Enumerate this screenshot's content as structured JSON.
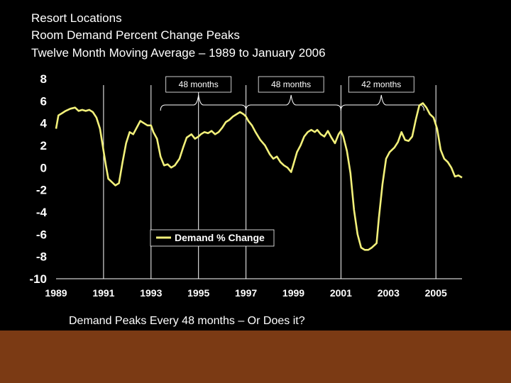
{
  "slide": {
    "title_lines": [
      "Resort Locations",
      "Room Demand Percent Change Peaks",
      "Twelve Month Moving Average – 1989 to January 2006"
    ],
    "caption": "Demand Peaks Every 48 months – Or Does it?",
    "colors": {
      "background": "#000000",
      "footer": "#7b3a14",
      "series": "#f2f07a",
      "text": "#ffffff"
    }
  },
  "chart_data": {
    "type": "line",
    "title": "",
    "xlabel": "",
    "ylabel": "",
    "xlim": [
      1989,
      2006.1
    ],
    "ylim": [
      -10,
      8
    ],
    "grid": false,
    "y_ticks": [
      "8",
      "6",
      "4",
      "2",
      "0",
      "-2",
      "-4",
      "-6",
      "-8",
      "-10"
    ],
    "y_tick_values": [
      8,
      6,
      4,
      2,
      0,
      -2,
      -4,
      -6,
      -8,
      -10
    ],
    "x_ticks": [
      "1989",
      "1991",
      "1993",
      "1995",
      "1997",
      "1999",
      "2001",
      "2003",
      "2005"
    ],
    "x_tick_values": [
      1989,
      1991,
      1993,
      1995,
      1997,
      1999,
      2001,
      2003,
      2005
    ],
    "vertical_lines": [
      1991,
      1993,
      1995,
      1997,
      2001,
      2005
    ],
    "legend": {
      "label": "Demand % Change",
      "placement": "lower-center"
    },
    "annotations": [
      {
        "label": "48 months",
        "from": 1993.4,
        "to": 1997.0,
        "peak": 1995.0
      },
      {
        "label": "48 months",
        "from": 1997.0,
        "to": 2001.0,
        "peak": 1998.9
      },
      {
        "label": "42 months",
        "from": 2001.0,
        "to": 2004.5,
        "peak": 2002.7
      }
    ],
    "series": [
      {
        "name": "Demand % Change",
        "x": [
          1989.0,
          1989.1,
          1989.25,
          1989.4,
          1989.6,
          1989.8,
          1989.95,
          1990.1,
          1990.25,
          1990.4,
          1990.55,
          1990.7,
          1990.85,
          1991.0,
          1991.1,
          1991.2,
          1991.35,
          1991.5,
          1991.65,
          1991.8,
          1991.95,
          1992.1,
          1992.25,
          1992.4,
          1992.55,
          1992.7,
          1992.85,
          1993.0,
          1993.1,
          1993.25,
          1993.4,
          1993.55,
          1993.7,
          1993.85,
          1994.0,
          1994.2,
          1994.35,
          1994.5,
          1994.7,
          1994.85,
          1995.0,
          1995.1,
          1995.25,
          1995.4,
          1995.55,
          1995.7,
          1995.85,
          1996.0,
          1996.15,
          1996.3,
          1996.45,
          1996.6,
          1996.75,
          1996.9,
          1997.0,
          1997.1,
          1997.25,
          1997.4,
          1997.6,
          1997.8,
          1998.0,
          1998.15,
          1998.3,
          1998.45,
          1998.6,
          1998.75,
          1998.9,
          1999.0,
          1999.15,
          1999.3,
          1999.45,
          1999.6,
          1999.75,
          1999.9,
          2000.0,
          2000.15,
          2000.3,
          2000.45,
          2000.6,
          2000.75,
          2000.9,
          2001.0,
          2001.1,
          2001.25,
          2001.4,
          2001.55,
          2001.7,
          2001.85,
          2002.0,
          2002.15,
          2002.3,
          2002.5,
          2002.6,
          2002.75,
          2002.9,
          2003.05,
          2003.25,
          2003.4,
          2003.55,
          2003.7,
          2003.85,
          2004.0,
          2004.15,
          2004.3,
          2004.45,
          2004.6,
          2004.75,
          2004.9,
          2005.05,
          2005.2,
          2005.35,
          2005.5,
          2005.65,
          2005.8,
          2005.95,
          2006.1
        ],
        "y": [
          3.5,
          4.7,
          4.9,
          5.1,
          5.3,
          5.4,
          5.1,
          5.2,
          5.1,
          5.2,
          5.0,
          4.5,
          3.5,
          1.5,
          0.2,
          -1.0,
          -1.3,
          -1.6,
          -1.4,
          0.5,
          2.2,
          3.2,
          3.0,
          3.6,
          4.2,
          4.0,
          3.8,
          3.8,
          3.2,
          2.6,
          1.0,
          0.2,
          0.3,
          0.0,
          0.2,
          0.8,
          1.8,
          2.7,
          3.0,
          2.6,
          2.8,
          3.0,
          3.2,
          3.1,
          3.3,
          3.0,
          3.2,
          3.6,
          4.1,
          4.3,
          4.6,
          4.8,
          5.0,
          4.8,
          4.6,
          4.2,
          3.8,
          3.2,
          2.5,
          2.0,
          1.2,
          0.8,
          1.0,
          0.5,
          0.2,
          0.0,
          -0.4,
          0.3,
          1.4,
          2.0,
          2.8,
          3.2,
          3.4,
          3.2,
          3.4,
          3.0,
          2.8,
          3.3,
          2.7,
          2.2,
          3.0,
          3.3,
          2.8,
          1.5,
          -0.5,
          -3.8,
          -6.0,
          -7.2,
          -7.4,
          -7.4,
          -7.2,
          -6.8,
          -4.5,
          -1.5,
          0.8,
          1.4,
          1.8,
          2.3,
          3.2,
          2.5,
          2.4,
          2.8,
          4.3,
          5.6,
          5.8,
          5.4,
          4.8,
          4.5,
          3.5,
          1.6,
          0.8,
          0.5,
          0.0,
          -0.8,
          -0.7,
          -0.9
        ]
      }
    ]
  }
}
